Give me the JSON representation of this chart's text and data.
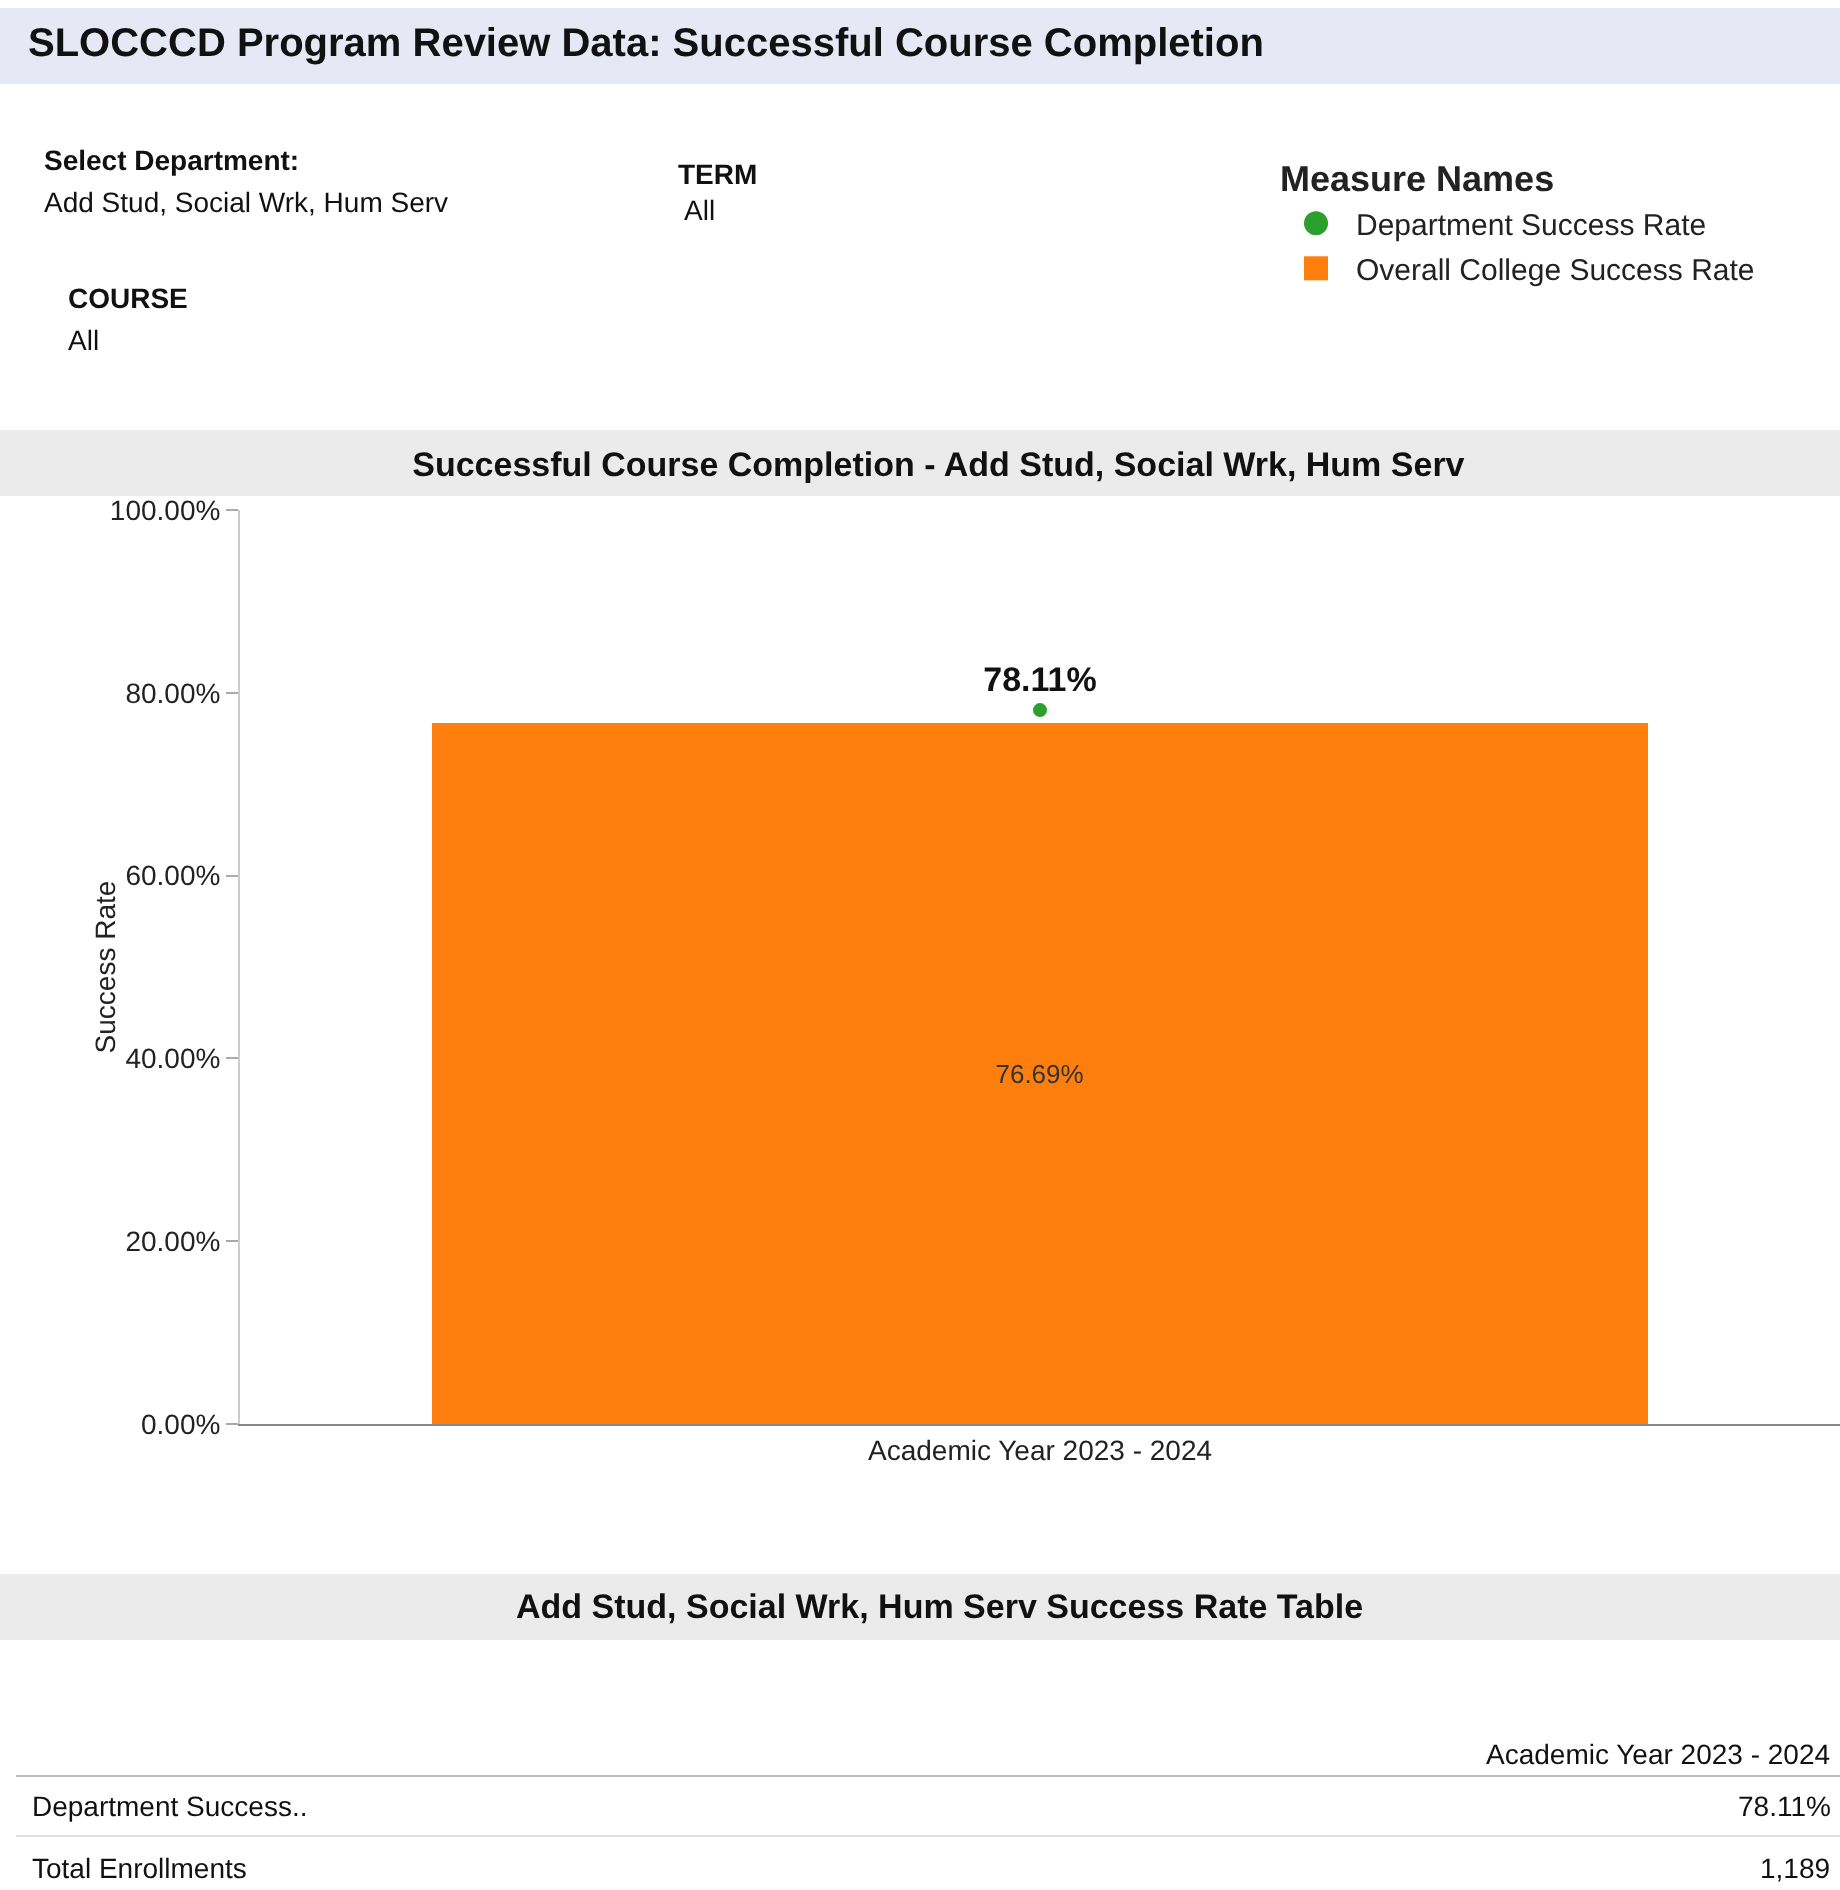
{
  "chart_data": {
    "type": "bar",
    "title": "Successful Course Completion - Add Stud, Social Wrk, Hum Serv",
    "ylabel": "Success Rate",
    "legend_title": "Measure Names",
    "legend": "top right",
    "grid": false,
    "categories": [
      "Academic Year 2023 - 2024"
    ],
    "ylim": [
      0,
      100
    ],
    "yticks": [
      {
        "value": 0,
        "label": "0.00%"
      },
      {
        "value": 20,
        "label": "20.00%"
      },
      {
        "value": 40,
        "label": "40.00%"
      },
      {
        "value": 60,
        "label": "60.00%"
      },
      {
        "value": 80,
        "label": "80.00%"
      },
      {
        "value": 100,
        "label": "100.00%"
      }
    ],
    "series": [
      {
        "name": "Department Success Rate",
        "type": "scatter",
        "marker": "circle",
        "color": "#2ca02c",
        "values": [
          78.11
        ],
        "value_labels": [
          "78.11%"
        ]
      },
      {
        "name": "Overall College Success Rate",
        "color": "#ff7f0e",
        "values": [
          76.69
        ],
        "value_labels": [
          "76.69%"
        ]
      }
    ],
    "annotations": [
      "SLOCCCD Program Review Data: Successful Course Completion",
      "Select Department:",
      "Add Stud, Social Wrk, Hum Serv",
      "TERM",
      "All",
      "COURSE",
      "All",
      "Add Stud, Social Wrk, Hum Serv Success Rate Table",
      "Academic Year 2023 - 2024",
      "Department Success..",
      "78.11%",
      "Total Enrollments",
      "1,189"
    ]
  }
}
